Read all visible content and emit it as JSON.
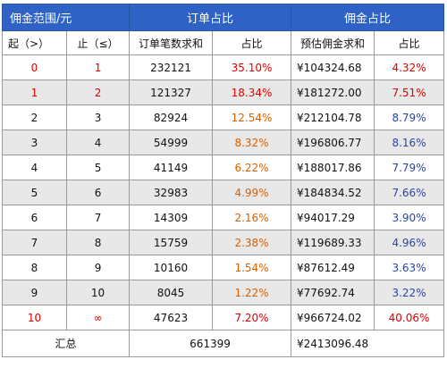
{
  "header": {
    "range_title": "佣金范围/元",
    "orders_title": "订单占比",
    "commission_title": "佣金占比"
  },
  "subheader": {
    "from": "起（>）",
    "to": "止（≤）",
    "order_count": "订单笔数求和",
    "order_share": "占比",
    "commission_sum": "预估佣金求和",
    "commission_share": "占比"
  },
  "rows": [
    {
      "from": "0",
      "to": "1",
      "orders": "232121",
      "order_share": "35.10%",
      "commission": "¥104324.68",
      "commission_share": "4.32%"
    },
    {
      "from": "1",
      "to": "2",
      "orders": "121327",
      "order_share": "18.34%",
      "commission": "¥181272.00",
      "commission_share": "7.51%"
    },
    {
      "from": "2",
      "to": "3",
      "orders": "82924",
      "order_share": "12.54%",
      "commission": "¥212104.78",
      "commission_share": "8.79%"
    },
    {
      "from": "3",
      "to": "4",
      "orders": "54999",
      "order_share": "8.32%",
      "commission": "¥196806.77",
      "commission_share": "8.16%"
    },
    {
      "from": "4",
      "to": "5",
      "orders": "41149",
      "order_share": "6.22%",
      "commission": "¥188017.86",
      "commission_share": "7.79%"
    },
    {
      "from": "5",
      "to": "6",
      "orders": "32983",
      "order_share": "4.99%",
      "commission": "¥184834.52",
      "commission_share": "7.66%"
    },
    {
      "from": "6",
      "to": "7",
      "orders": "14309",
      "order_share": "2.16%",
      "commission": "¥94017.29",
      "commission_share": "3.90%"
    },
    {
      "from": "7",
      "to": "8",
      "orders": "15759",
      "order_share": "2.38%",
      "commission": "¥119689.33",
      "commission_share": "4.96%"
    },
    {
      "from": "8",
      "to": "9",
      "orders": "10160",
      "order_share": "1.54%",
      "commission": "¥87612.49",
      "commission_share": "3.63%"
    },
    {
      "from": "9",
      "to": "10",
      "orders": "8045",
      "order_share": "1.22%",
      "commission": "¥77692.74",
      "commission_share": "3.22%"
    },
    {
      "from": "10",
      "to": "∞",
      "orders": "47623",
      "order_share": "7.20%",
      "commission": "¥966724.02",
      "commission_share": "40.06%"
    }
  ],
  "total": {
    "label": "汇总",
    "orders": "661399",
    "commission": "¥2413096.48"
  },
  "colors": {
    "header_bg": "#2e62c4",
    "highlight_red": "#e00000",
    "order_share_orange": "#d96000",
    "commission_share_blue": "#2a45a8",
    "even_row_bg": "#e8e8e8"
  }
}
